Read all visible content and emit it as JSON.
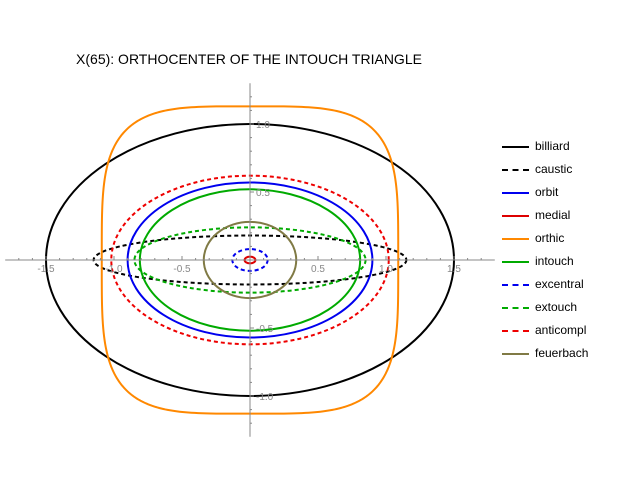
{
  "chart_data": {
    "type": "line",
    "title": "X(65): ORTHOCENTER OF THE INTOUCH TRIANGLE",
    "xlabel": "",
    "ylabel": "",
    "xlim": [
      -1.8,
      1.8
    ],
    "ylim": [
      -1.3,
      1.3
    ],
    "x_ticks": [
      -1.5,
      -1.0,
      -0.5,
      0.5,
      1.0,
      1.5
    ],
    "x_tick_labels": [
      "-1.5",
      "-1.0",
      "-0.5",
      "0.5",
      "1.0",
      "1.5"
    ],
    "y_ticks": [
      1.0,
      0.5,
      -0.5,
      -1.0
    ],
    "y_tick_labels": [
      "1.0",
      "0.5",
      "-0.5",
      "-1.0"
    ],
    "grid": false,
    "legend_position": "right",
    "series": [
      {
        "name": "billiard",
        "color": "#000000",
        "dashed": false,
        "shape": "ellipse",
        "a": 1.5,
        "b": 1.0
      },
      {
        "name": "caustic",
        "color": "#000000",
        "dashed": true,
        "shape": "ellipse",
        "a": 1.15,
        "b": 0.18
      },
      {
        "name": "orbit",
        "color": "#0000ee",
        "dashed": false,
        "shape": "ellipse",
        "a": 0.9,
        "b": 0.57
      },
      {
        "name": "medial",
        "color": "#dd0000",
        "dashed": false,
        "shape": "ellipse",
        "a": 0.04,
        "b": 0.025
      },
      {
        "name": "orthic",
        "color": "#ff8800",
        "dashed": false,
        "shape": "superellipse",
        "a": 1.09,
        "b": 1.13,
        "n": 4
      },
      {
        "name": "intouch",
        "color": "#00aa00",
        "dashed": false,
        "shape": "ellipse",
        "a": 0.81,
        "b": 0.52
      },
      {
        "name": "excentral",
        "color": "#0000ee",
        "dashed": true,
        "shape": "ellipse",
        "a": 0.13,
        "b": 0.08
      },
      {
        "name": "extouch",
        "color": "#00aa00",
        "dashed": true,
        "shape": "ellipse",
        "a": 0.85,
        "b": 0.24
      },
      {
        "name": "anticompl",
        "color": "#ee0000",
        "dashed": true,
        "shape": "ellipse",
        "a": 1.02,
        "b": 0.62
      },
      {
        "name": "feuerbach",
        "color": "#807a45",
        "dashed": false,
        "shape": "ellipse",
        "a": 0.34,
        "b": 0.28
      }
    ]
  }
}
